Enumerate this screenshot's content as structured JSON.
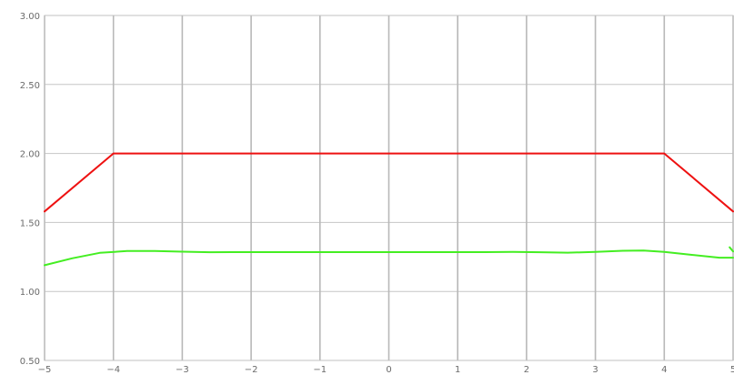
{
  "chart_data": {
    "type": "line",
    "title": "",
    "xlabel": "",
    "ylabel": "",
    "xlim": [
      -5,
      5
    ],
    "ylim": [
      0.5,
      3.0
    ],
    "grid": true,
    "x_ticks": [
      -5,
      -4,
      -3,
      -2,
      -1,
      0,
      1,
      2,
      3,
      4,
      5
    ],
    "x_tick_labels": [
      "−5",
      "−4",
      "−3",
      "−2",
      "−1",
      "0",
      "1",
      "2",
      "3",
      "4",
      "5"
    ],
    "y_ticks": [
      0.5,
      1.0,
      1.5,
      2.0,
      2.5,
      3.0
    ],
    "y_tick_labels": [
      "0.50",
      "1.00",
      "1.50",
      "2.00",
      "2.50",
      "3.00"
    ],
    "series": [
      {
        "color": "#ee1111",
        "points": [
          [
            -5,
            1.58
          ],
          [
            -4,
            2.0
          ],
          [
            4,
            2.0
          ],
          [
            5,
            1.58
          ]
        ]
      },
      {
        "color": "#44ee22",
        "points": [
          [
            -5,
            1.19
          ],
          [
            -4.6,
            1.24
          ],
          [
            -4.2,
            1.28
          ],
          [
            -3.8,
            1.293
          ],
          [
            -3.4,
            1.293
          ],
          [
            -3.0,
            1.288
          ],
          [
            -2.6,
            1.284
          ],
          [
            -2.2,
            1.285
          ],
          [
            -1.8,
            1.285
          ],
          [
            -1.4,
            1.285
          ],
          [
            -1.0,
            1.285
          ],
          [
            -0.6,
            1.285
          ],
          [
            -0.2,
            1.285
          ],
          [
            0.2,
            1.285
          ],
          [
            0.6,
            1.285
          ],
          [
            1.0,
            1.285
          ],
          [
            1.4,
            1.285
          ],
          [
            1.8,
            1.286
          ],
          [
            2.2,
            1.284
          ],
          [
            2.6,
            1.281
          ],
          [
            3.0,
            1.286
          ],
          [
            3.4,
            1.295
          ],
          [
            3.7,
            1.297
          ],
          [
            4.0,
            1.286
          ],
          [
            4.4,
            1.265
          ],
          [
            4.8,
            1.245
          ],
          [
            5.0,
            1.245
          ]
        ]
      },
      {
        "color": "#44ee22",
        "points": [
          [
            4.95,
            1.32
          ],
          [
            5.0,
            1.29
          ]
        ]
      }
    ]
  }
}
